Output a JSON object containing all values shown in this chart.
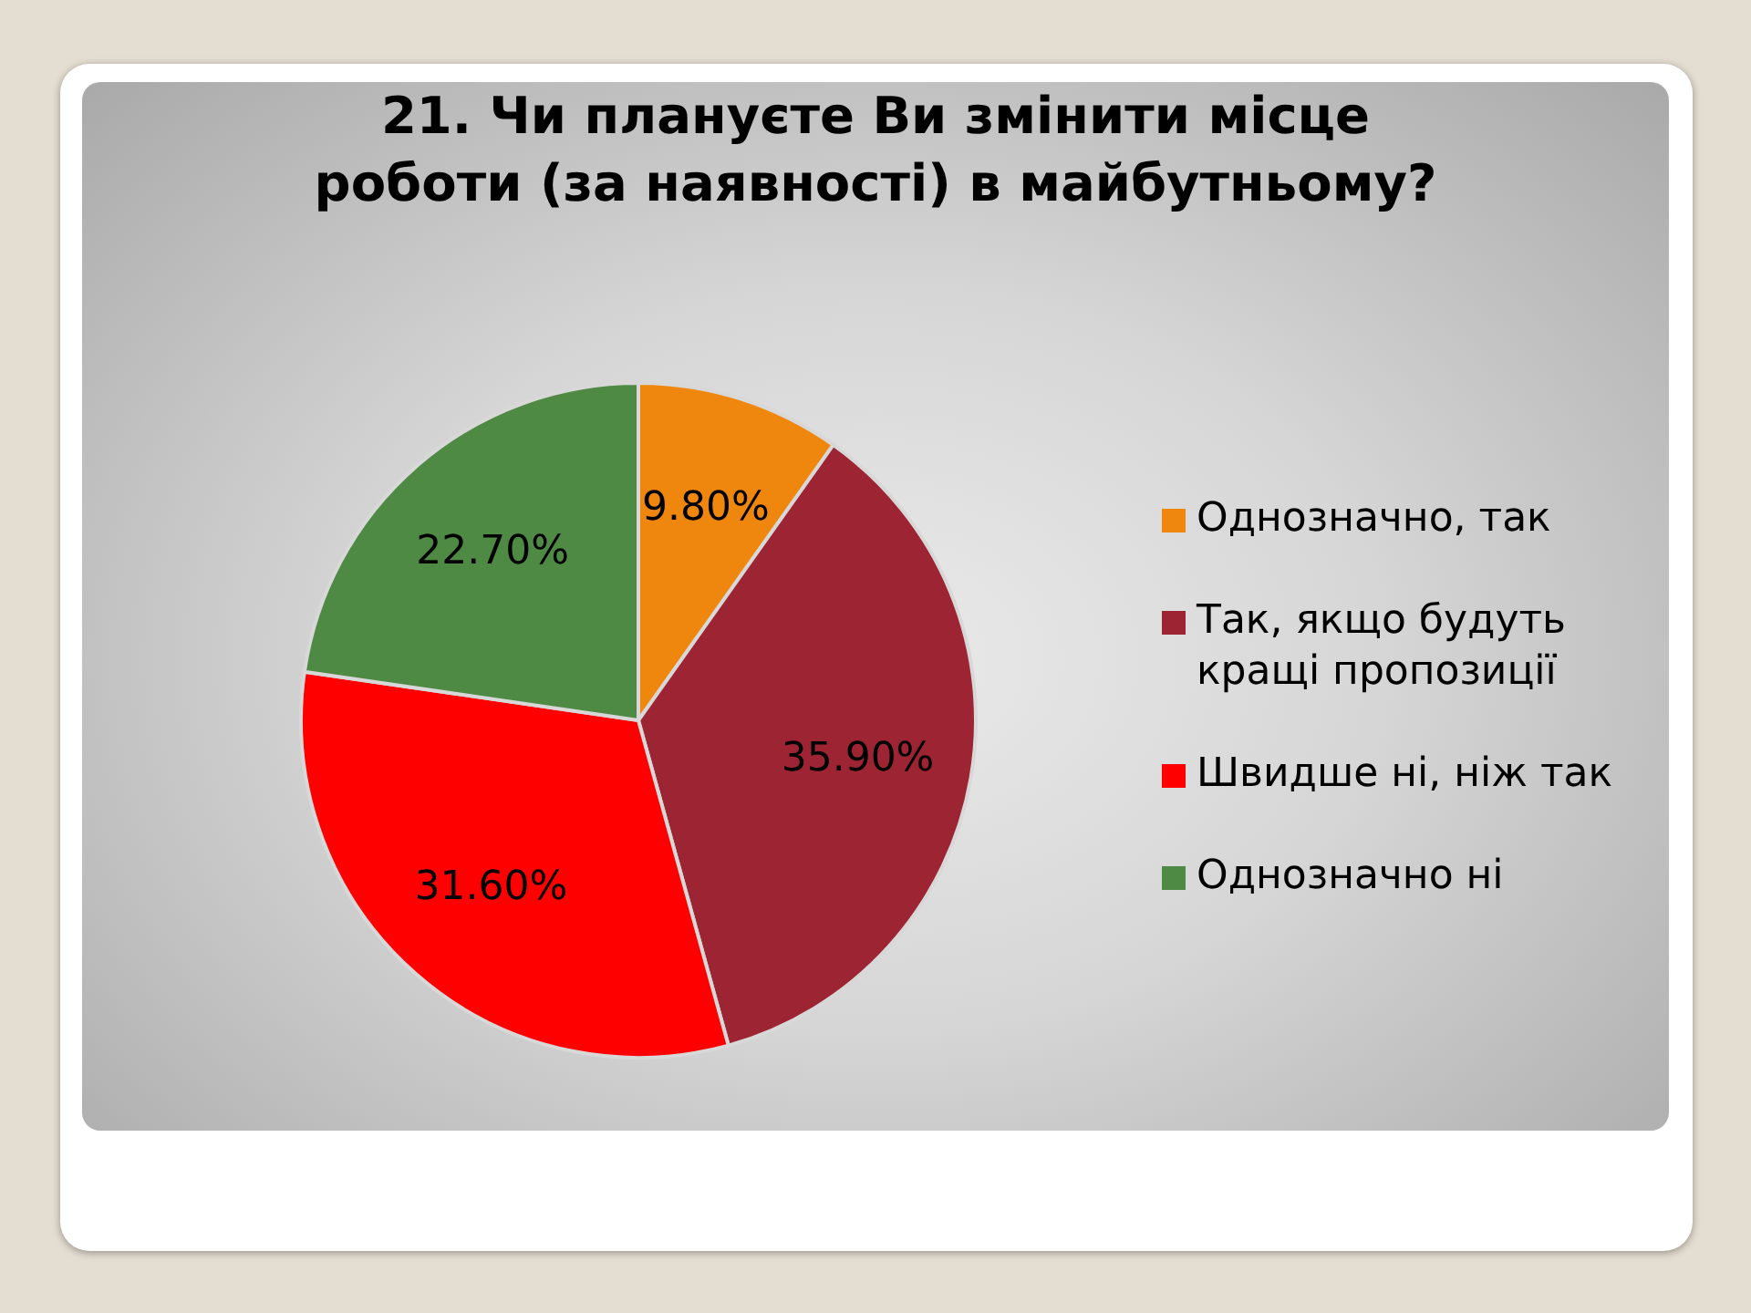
{
  "chart_data": {
    "type": "pie",
    "title": "21. Чи плануєте Ви змінити місце роботи (за наявності) в майбутньому?",
    "categories": [
      "Однозначно, так",
      "Так, якщо будуть кращі пропозиції",
      "Швидше ні, ніж так",
      "Однозначно ні"
    ],
    "values": [
      9.8,
      35.9,
      31.6,
      22.7
    ],
    "colors": [
      "#ef870f",
      "#9c2433",
      "#ff0000",
      "#4f8a44"
    ],
    "value_labels": [
      "9.80%",
      "35.90%",
      "31.60%",
      "22.70%"
    ],
    "legend": "right"
  }
}
